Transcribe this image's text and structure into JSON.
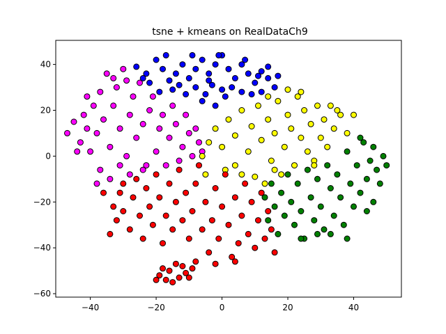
{
  "chart_data": {
    "type": "scatter",
    "title": "tsne + kmeans on RealDataCh9",
    "xlabel": "",
    "ylabel": "",
    "xlim": [
      -50.5,
      54.5
    ],
    "ylim": [
      -61.5,
      50.5
    ],
    "xticks": [
      -40,
      -20,
      0,
      20,
      40
    ],
    "yticks": [
      -60,
      -40,
      -20,
      0,
      20,
      40
    ],
    "xtick_labels": [
      "−40",
      "−20",
      "0",
      "20",
      "40"
    ],
    "ytick_labels": [
      "−60",
      "−40",
      "−20",
      "0",
      "20",
      "40"
    ],
    "grid": false,
    "legend": false,
    "marker_edge_color": "#000000",
    "series": [
      {
        "color": "#0000ff",
        "points": [
          [
            -26,
            39
          ],
          [
            -23,
            36
          ],
          [
            -20,
            42
          ],
          [
            -18,
            38
          ],
          [
            -16,
            33
          ],
          [
            -14,
            36
          ],
          [
            -12,
            40
          ],
          [
            -10,
            34
          ],
          [
            -8,
            38
          ],
          [
            -6,
            42
          ],
          [
            -4,
            36
          ],
          [
            -2,
            40
          ],
          [
            0,
            44
          ],
          [
            2,
            38
          ],
          [
            4,
            34
          ],
          [
            6,
            40
          ],
          [
            8,
            36
          ],
          [
            10,
            32
          ],
          [
            12,
            37
          ],
          [
            14,
            34
          ],
          [
            16,
            30
          ],
          [
            -22,
            32
          ],
          [
            -19,
            28
          ],
          [
            -15,
            29
          ],
          [
            -11,
            27
          ],
          [
            -8,
            30
          ],
          [
            -5,
            27
          ],
          [
            -3,
            31
          ],
          [
            0,
            29
          ],
          [
            3,
            30
          ],
          [
            6,
            28
          ],
          [
            9,
            27
          ],
          [
            12,
            28
          ],
          [
            -17,
            44
          ],
          [
            -9,
            44
          ],
          [
            -1,
            44
          ],
          [
            7,
            42
          ],
          [
            -13,
            31
          ],
          [
            -6,
            24
          ],
          [
            -2,
            22
          ],
          [
            1,
            26
          ],
          [
            -24,
            34
          ],
          [
            -4,
            33
          ],
          [
            11,
            35
          ],
          [
            14,
            39
          ],
          [
            17,
            35
          ]
        ]
      },
      {
        "color": "#ff00ff",
        "points": [
          [
            -47,
            10
          ],
          [
            -45,
            15
          ],
          [
            -43,
            6
          ],
          [
            -42,
            18
          ],
          [
            -41,
            12
          ],
          [
            -40,
            2
          ],
          [
            -39,
            22
          ],
          [
            -38,
            10
          ],
          [
            -37,
            28
          ],
          [
            -36,
            16
          ],
          [
            -35,
            36
          ],
          [
            -34,
            4
          ],
          [
            -33,
            22
          ],
          [
            -32,
            30
          ],
          [
            -31,
            12
          ],
          [
            -30,
            38
          ],
          [
            -29,
            0
          ],
          [
            -28,
            18
          ],
          [
            -27,
            26
          ],
          [
            -26,
            8
          ],
          [
            -25,
            32
          ],
          [
            -24,
            14
          ],
          [
            -23,
            -4
          ],
          [
            -22,
            20
          ],
          [
            -21,
            26
          ],
          [
            -20,
            2
          ],
          [
            -19,
            12
          ],
          [
            -18,
            18
          ],
          [
            -17,
            -4
          ],
          [
            -16,
            8
          ],
          [
            -15,
            22
          ],
          [
            -14,
            14
          ],
          [
            -13,
            -2
          ],
          [
            -12,
            4
          ],
          [
            -11,
            18
          ],
          [
            -10,
            10
          ],
          [
            -9,
            0
          ],
          [
            -8,
            12
          ],
          [
            -7,
            6
          ],
          [
            -6,
            2
          ],
          [
            -38,
            -12
          ],
          [
            -37,
            -6
          ],
          [
            -34,
            -10
          ],
          [
            -31,
            -4
          ],
          [
            -28,
            -8
          ],
          [
            -44,
            2
          ],
          [
            -41,
            26
          ],
          [
            -33,
            34
          ],
          [
            -29,
            33
          ],
          [
            -24,
            -6
          ]
        ]
      },
      {
        "color": "#ffff00",
        "points": [
          [
            -6,
            0
          ],
          [
            -4,
            6
          ],
          [
            -2,
            12
          ],
          [
            0,
            4
          ],
          [
            2,
            16
          ],
          [
            4,
            -4
          ],
          [
            4,
            9
          ],
          [
            6,
            20
          ],
          [
            8,
            2
          ],
          [
            9,
            13
          ],
          [
            10,
            -9
          ],
          [
            11,
            22
          ],
          [
            12,
            7
          ],
          [
            14,
            16
          ],
          [
            15,
            -2
          ],
          [
            16,
            10
          ],
          [
            17,
            24
          ],
          [
            18,
            -8
          ],
          [
            19,
            4
          ],
          [
            20,
            18
          ],
          [
            21,
            12
          ],
          [
            22,
            -4
          ],
          [
            23,
            26
          ],
          [
            24,
            8
          ],
          [
            25,
            20
          ],
          [
            26,
            2
          ],
          [
            27,
            14
          ],
          [
            28,
            -2
          ],
          [
            29,
            22
          ],
          [
            30,
            8
          ],
          [
            31,
            16
          ],
          [
            32,
            4
          ],
          [
            33,
            22
          ],
          [
            34,
            12
          ],
          [
            35,
            20
          ],
          [
            36,
            18
          ],
          [
            38,
            10
          ],
          [
            40,
            18
          ],
          [
            24,
            28
          ],
          [
            20,
            29
          ],
          [
            14,
            26
          ],
          [
            -5,
            -8
          ],
          [
            1,
            -6
          ],
          [
            6,
            -8
          ],
          [
            13,
            -12
          ],
          [
            16,
            -6
          ],
          [
            28,
            -4
          ]
        ]
      },
      {
        "color": "#008000",
        "points": [
          [
            13,
            -18
          ],
          [
            14,
            -28
          ],
          [
            15,
            -12
          ],
          [
            16,
            -22
          ],
          [
            17,
            -34
          ],
          [
            18,
            -16
          ],
          [
            19,
            -26
          ],
          [
            20,
            -8
          ],
          [
            21,
            -20
          ],
          [
            22,
            -30
          ],
          [
            23,
            -12
          ],
          [
            24,
            -24
          ],
          [
            25,
            -36
          ],
          [
            26,
            -6
          ],
          [
            27,
            -18
          ],
          [
            28,
            -28
          ],
          [
            29,
            -10
          ],
          [
            30,
            -22
          ],
          [
            31,
            -32
          ],
          [
            32,
            -4
          ],
          [
            33,
            -14
          ],
          [
            34,
            -26
          ],
          [
            35,
            -8
          ],
          [
            36,
            -18
          ],
          [
            37,
            -30
          ],
          [
            38,
            2
          ],
          [
            39,
            -12
          ],
          [
            40,
            -22
          ],
          [
            41,
            -4
          ],
          [
            42,
            -16
          ],
          [
            43,
            6
          ],
          [
            44,
            -10
          ],
          [
            45,
            -2
          ],
          [
            46,
            4
          ],
          [
            47,
            -6
          ],
          [
            48,
            -12
          ],
          [
            49,
            0
          ],
          [
            50,
            -4
          ],
          [
            46,
            -20
          ],
          [
            44,
            -24
          ],
          [
            42,
            8
          ],
          [
            38,
            -36
          ],
          [
            33,
            -34
          ],
          [
            29,
            -34
          ],
          [
            24,
            -36
          ]
        ]
      },
      {
        "color": "#ff0000",
        "points": [
          [
            -34,
            -34
          ],
          [
            -33,
            -22
          ],
          [
            -32,
            -28
          ],
          [
            -31,
            -16
          ],
          [
            -30,
            -24
          ],
          [
            -28,
            -32
          ],
          [
            -27,
            -18
          ],
          [
            -26,
            -10
          ],
          [
            -25,
            -26
          ],
          [
            -24,
            -36
          ],
          [
            -23,
            -14
          ],
          [
            -22,
            -22
          ],
          [
            -21,
            -30
          ],
          [
            -20,
            -8
          ],
          [
            -19,
            -18
          ],
          [
            -18,
            -38
          ],
          [
            -17,
            -26
          ],
          [
            -16,
            -12
          ],
          [
            -15,
            -32
          ],
          [
            -14,
            -20
          ],
          [
            -13,
            -6
          ],
          [
            -12,
            -28
          ],
          [
            -11,
            -16
          ],
          [
            -10,
            -36
          ],
          [
            -9,
            -24
          ],
          [
            -8,
            -12
          ],
          [
            -7,
            -4
          ],
          [
            -6,
            -32
          ],
          [
            -5,
            -20
          ],
          [
            -4,
            -42
          ],
          [
            -3,
            -28
          ],
          [
            -2,
            -14
          ],
          [
            -1,
            -36
          ],
          [
            0,
            -22
          ],
          [
            1,
            -8
          ],
          [
            2,
            -30
          ],
          [
            3,
            -44
          ],
          [
            4,
            -18
          ],
          [
            5,
            -38
          ],
          [
            6,
            -26
          ],
          [
            7,
            -12
          ],
          [
            8,
            -34
          ],
          [
            9,
            -20
          ],
          [
            10,
            -40
          ],
          [
            11,
            -28
          ],
          [
            12,
            -16
          ],
          [
            13,
            -36
          ],
          [
            14,
            -24
          ],
          [
            15,
            -32
          ],
          [
            16,
            -42
          ],
          [
            -36,
            -16
          ],
          [
            -30,
            -12
          ],
          [
            -2,
            -47
          ],
          [
            4,
            -46
          ],
          [
            -14,
            -47
          ],
          [
            -16,
            -50
          ],
          [
            -18,
            -49
          ],
          [
            -19,
            -52
          ],
          [
            -17,
            -54
          ],
          [
            -15,
            -55
          ],
          [
            -13,
            -53
          ],
          [
            -11,
            -51
          ],
          [
            -9,
            -49
          ],
          [
            -12,
            -48
          ],
          [
            -10,
            -53
          ],
          [
            -20,
            -54
          ],
          [
            -8,
            -46
          ]
        ]
      }
    ]
  }
}
